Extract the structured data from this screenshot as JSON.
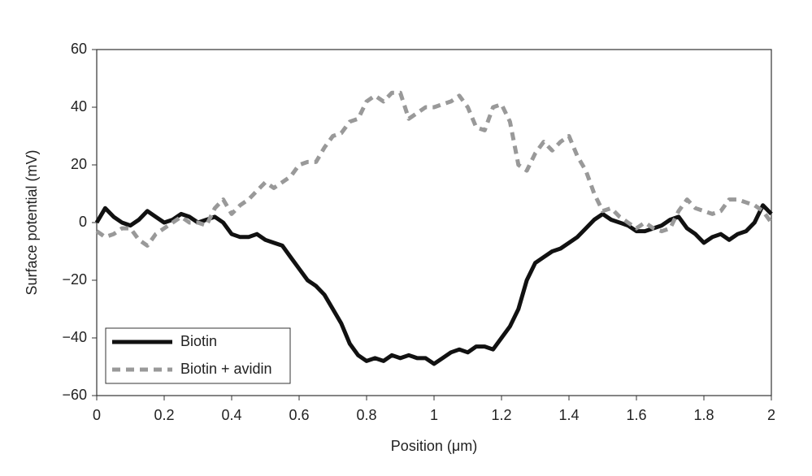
{
  "chart_data": {
    "type": "line",
    "xlabel": "Position (μm)",
    "ylabel": "Surface potential (mV)",
    "x": [
      0,
      0.025,
      0.05,
      0.075,
      0.1,
      0.125,
      0.15,
      0.175,
      0.2,
      0.225,
      0.25,
      0.275,
      0.3,
      0.325,
      0.35,
      0.375,
      0.4,
      0.425,
      0.45,
      0.475,
      0.5,
      0.525,
      0.55,
      0.575,
      0.6,
      0.625,
      0.65,
      0.675,
      0.7,
      0.725,
      0.75,
      0.775,
      0.8,
      0.825,
      0.85,
      0.875,
      0.9,
      0.925,
      0.95,
      0.975,
      1,
      1.025,
      1.05,
      1.075,
      1.1,
      1.125,
      1.15,
      1.175,
      1.2,
      1.225,
      1.25,
      1.275,
      1.3,
      1.325,
      1.35,
      1.375,
      1.4,
      1.425,
      1.45,
      1.475,
      1.5,
      1.525,
      1.55,
      1.575,
      1.6,
      1.625,
      1.65,
      1.675,
      1.7,
      1.725,
      1.75,
      1.775,
      1.8,
      1.825,
      1.85,
      1.875,
      1.9,
      1.925,
      1.95,
      1.975,
      2
    ],
    "series": [
      {
        "name": "Biotin",
        "color": "#111111",
        "style": "solid",
        "values": [
          0,
          5,
          2,
          0,
          -1,
          1,
          4,
          2,
          0,
          1,
          3,
          2,
          0,
          1,
          2,
          0,
          -4,
          -5,
          -5,
          -4,
          -6,
          -7,
          -8,
          -12,
          -16,
          -20,
          -22,
          -25,
          -30,
          -35,
          -42,
          -46,
          -48,
          -47,
          -48,
          -46,
          -47,
          -46,
          -47,
          -47,
          -49,
          -47,
          -45,
          -44,
          -45,
          -43,
          -43,
          -44,
          -40,
          -36,
          -30,
          -20,
          -14,
          -12,
          -10,
          -9,
          -7,
          -5,
          -2,
          1,
          3,
          1,
          0,
          -1,
          -3,
          -3,
          -2,
          -1,
          1,
          2,
          -2,
          -4,
          -7,
          -5,
          -4,
          -6,
          -4,
          -3,
          0,
          6,
          3
        ]
      },
      {
        "name": "Biotin + avidin",
        "color": "#999999",
        "style": "dashed",
        "values": [
          -3,
          -5,
          -4,
          -2,
          -2,
          -6,
          -8,
          -4,
          -2,
          0,
          2,
          0,
          0,
          -1,
          5,
          8,
          3,
          6,
          8,
          11,
          14,
          12,
          14,
          16,
          20,
          21,
          21,
          26,
          30,
          31,
          35,
          36,
          42,
          44,
          42,
          45,
          45,
          36,
          38,
          40,
          40,
          41,
          42,
          44,
          40,
          33,
          32,
          40,
          41,
          35,
          20,
          18,
          24,
          28,
          25,
          28,
          30,
          23,
          18,
          10,
          4,
          5,
          2,
          0,
          -2,
          0,
          -2,
          -3,
          -2,
          4,
          8,
          5,
          4,
          3,
          4,
          8,
          8,
          7,
          6,
          4,
          0
        ]
      }
    ],
    "xlim": [
      0,
      2
    ],
    "xticks": [
      0,
      0.2,
      0.4,
      0.6,
      0.8,
      1,
      1.2,
      1.4,
      1.6,
      1.8,
      2
    ],
    "ylim": [
      -60,
      60
    ],
    "yticks": [
      {
        "value": -60,
        "label": "−60"
      },
      {
        "value": -40,
        "label": "−40"
      },
      {
        "value": -20,
        "label": "−20"
      },
      0,
      20,
      40,
      60
    ],
    "grid": false,
    "legend": "lower left"
  }
}
